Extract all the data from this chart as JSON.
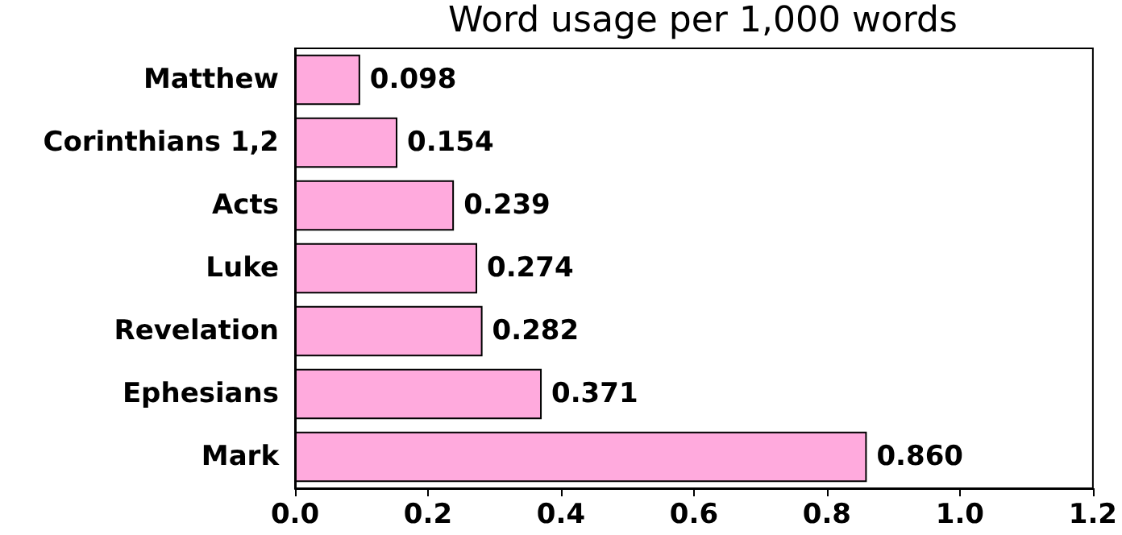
{
  "chart_data": {
    "type": "bar",
    "orientation": "horizontal",
    "title": "Word usage per 1,000 words",
    "categories": [
      "Matthew",
      "Corinthians 1,2",
      "Acts",
      "Luke",
      "Revelation",
      "Ephesians",
      "Mark"
    ],
    "values": [
      0.098,
      0.154,
      0.239,
      0.274,
      0.282,
      0.371,
      0.86
    ],
    "value_labels": [
      "0.098",
      "0.154",
      "0.239",
      "0.274",
      "0.282",
      "0.371",
      "0.860"
    ],
    "color": "#ffaadd",
    "xlim": [
      0,
      1.2
    ],
    "xticks": [
      {
        "value": 0,
        "label": "0.0"
      },
      {
        "value": 0.2,
        "label": "0.2"
      },
      {
        "value": 0.4,
        "label": "0.4"
      },
      {
        "value": 0.6,
        "label": "0.6"
      },
      {
        "value": 0.8,
        "label": "0.8"
      },
      {
        "value": 1.0,
        "label": "1.0"
      },
      {
        "value": 1.2,
        "label": "1.2"
      }
    ],
    "grid": false
  }
}
